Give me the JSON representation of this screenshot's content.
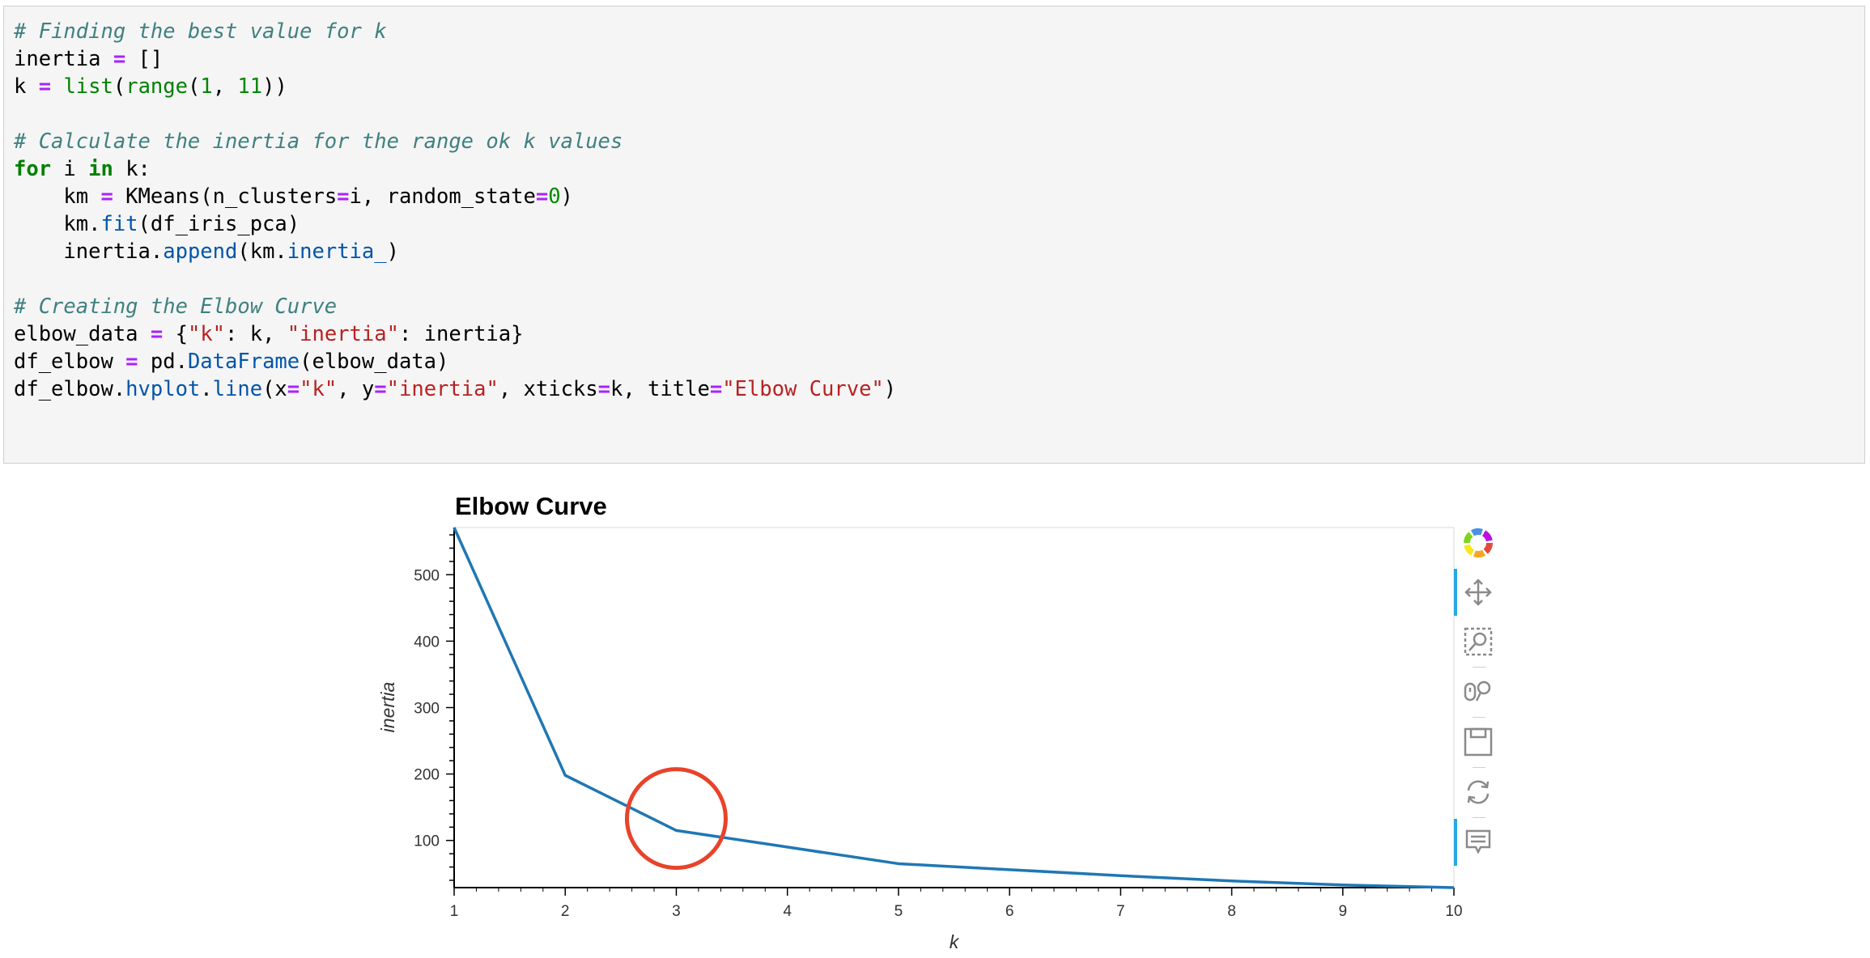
{
  "code_cell": {
    "lines": [
      [
        {
          "t": "c",
          "s": "# Finding the best value for k"
        }
      ],
      [
        {
          "t": "n",
          "s": "inertia "
        },
        {
          "t": "o",
          "s": "="
        },
        {
          "t": "n",
          "s": " []"
        }
      ],
      [
        {
          "t": "n",
          "s": "k "
        },
        {
          "t": "o",
          "s": "="
        },
        {
          "t": "n",
          "s": " "
        },
        {
          "t": "b",
          "s": "list"
        },
        {
          "t": "n",
          "s": "("
        },
        {
          "t": "b",
          "s": "range"
        },
        {
          "t": "n",
          "s": "("
        },
        {
          "t": "m",
          "s": "1"
        },
        {
          "t": "n",
          "s": ", "
        },
        {
          "t": "m",
          "s": "11"
        },
        {
          "t": "n",
          "s": "))"
        }
      ],
      [],
      [
        {
          "t": "c",
          "s": "# Calculate the inertia for the range ok k values"
        }
      ],
      [
        {
          "t": "k",
          "s": "for"
        },
        {
          "t": "n",
          "s": " i "
        },
        {
          "t": "k",
          "s": "in"
        },
        {
          "t": "n",
          "s": " k:"
        }
      ],
      [
        {
          "t": "n",
          "s": "    km "
        },
        {
          "t": "o",
          "s": "="
        },
        {
          "t": "n",
          "s": " KMeans(n_clusters"
        },
        {
          "t": "o",
          "s": "="
        },
        {
          "t": "n",
          "s": "i, random_state"
        },
        {
          "t": "o",
          "s": "="
        },
        {
          "t": "m",
          "s": "0"
        },
        {
          "t": "n",
          "s": ")"
        }
      ],
      [
        {
          "t": "n",
          "s": "    km."
        },
        {
          "t": "a",
          "s": "fit"
        },
        {
          "t": "n",
          "s": "(df_iris_pca)"
        }
      ],
      [
        {
          "t": "n",
          "s": "    inertia."
        },
        {
          "t": "a",
          "s": "append"
        },
        {
          "t": "n",
          "s": "(km."
        },
        {
          "t": "a",
          "s": "inertia_"
        },
        {
          "t": "n",
          "s": ")"
        }
      ],
      [],
      [
        {
          "t": "c",
          "s": "# Creating the Elbow Curve"
        }
      ],
      [
        {
          "t": "n",
          "s": "elbow_data "
        },
        {
          "t": "o",
          "s": "="
        },
        {
          "t": "n",
          "s": " {"
        },
        {
          "t": "s",
          "s": "\"k\""
        },
        {
          "t": "n",
          "s": ": k, "
        },
        {
          "t": "s",
          "s": "\"inertia\""
        },
        {
          "t": "n",
          "s": ": inertia}"
        }
      ],
      [
        {
          "t": "n",
          "s": "df_elbow "
        },
        {
          "t": "o",
          "s": "="
        },
        {
          "t": "n",
          "s": " pd."
        },
        {
          "t": "a",
          "s": "DataFrame"
        },
        {
          "t": "n",
          "s": "(elbow_data)"
        }
      ],
      [
        {
          "t": "n",
          "s": "df_elbow."
        },
        {
          "t": "a",
          "s": "hvplot"
        },
        {
          "t": "n",
          "s": "."
        },
        {
          "t": "a",
          "s": "line"
        },
        {
          "t": "n",
          "s": "(x"
        },
        {
          "t": "o",
          "s": "="
        },
        {
          "t": "s",
          "s": "\"k\""
        },
        {
          "t": "n",
          "s": ", y"
        },
        {
          "t": "o",
          "s": "="
        },
        {
          "t": "s",
          "s": "\"inertia\""
        },
        {
          "t": "n",
          "s": ", xticks"
        },
        {
          "t": "o",
          "s": "="
        },
        {
          "t": "n",
          "s": "k, title"
        },
        {
          "t": "o",
          "s": "="
        },
        {
          "t": "s",
          "s": "\"Elbow Curve\""
        },
        {
          "t": "n",
          "s": ")"
        }
      ]
    ]
  },
  "chart_data": {
    "type": "line",
    "title": "Elbow Curve",
    "xlabel": "k",
    "ylabel": "inertia",
    "x": [
      1,
      2,
      3,
      4,
      5,
      6,
      7,
      8,
      9,
      10
    ],
    "series": [
      {
        "values": [
          571,
          198,
          115,
          90,
          65,
          56,
          47,
          39,
          33,
          29
        ],
        "color": "#1f77b4"
      }
    ],
    "xlim": [
      1,
      10
    ],
    "ylim": [
      29,
      571
    ],
    "x_ticks": [
      1,
      2,
      3,
      4,
      5,
      6,
      7,
      8,
      9,
      10
    ],
    "y_ticks": [
      100,
      200,
      300,
      400,
      500
    ],
    "grid": false,
    "annotation": {
      "type": "circle",
      "x": 3,
      "y": 133,
      "color": "#e8432a"
    }
  },
  "toolbar": {
    "tools": [
      "bokeh-logo-icon",
      "pan-icon",
      "box-zoom-icon",
      "wheel-zoom-icon",
      "save-icon",
      "reset-icon",
      "hover-icon"
    ]
  }
}
